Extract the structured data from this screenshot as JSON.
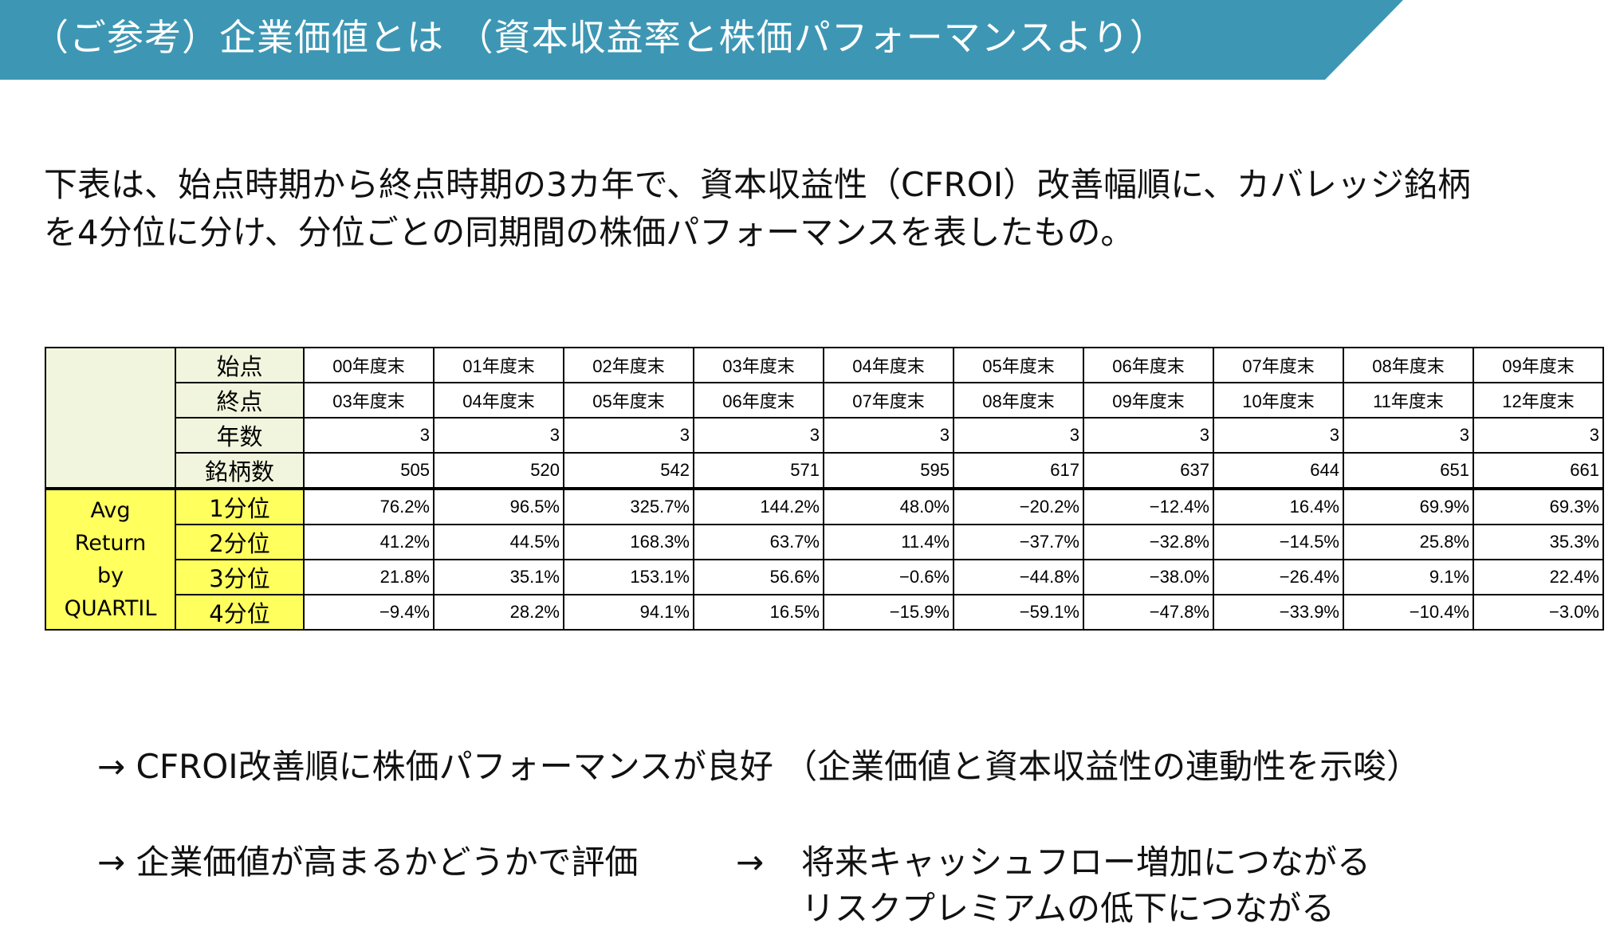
{
  "header": {
    "title": "（ご参考）企業価値とは （資本収益率と株価パフォーマンスより）",
    "banner_color": "#3d97b4"
  },
  "description": {
    "line1": "下表は、始点時期から終点時期の3カ年で、資本収益性（CFROI）改善幅順に、カバレッジ銘柄",
    "line2": "を4分位に分け、分位ごとの同期間の株価パフォーマンスを表したもの。"
  },
  "table": {
    "row_labels": {
      "start": "始点",
      "end": "終点",
      "years": "年数",
      "count": "銘柄数"
    },
    "start_periods": [
      "00年度末",
      "01年度末",
      "02年度末",
      "03年度末",
      "04年度末",
      "05年度末",
      "06年度末",
      "07年度末",
      "08年度末",
      "09年度末"
    ],
    "end_periods": [
      "03年度末",
      "04年度末",
      "05年度末",
      "06年度末",
      "07年度末",
      "08年度末",
      "09年度末",
      "10年度末",
      "11年度末",
      "12年度末"
    ],
    "years": [
      "3",
      "3",
      "3",
      "3",
      "3",
      "3",
      "3",
      "3",
      "3",
      "3"
    ],
    "counts": [
      "505",
      "520",
      "542",
      "571",
      "595",
      "617",
      "637",
      "644",
      "651",
      "661"
    ],
    "avg_label": [
      "Avg",
      "Return",
      "by",
      "QUARTIL"
    ],
    "quartiles": [
      {
        "label": "1分位",
        "values": [
          "76.2%",
          "96.5%",
          "325.7%",
          "144.2%",
          "48.0%",
          "−20.2%",
          "−12.4%",
          "16.4%",
          "69.9%",
          "69.3%"
        ]
      },
      {
        "label": "2分位",
        "values": [
          "41.2%",
          "44.5%",
          "168.3%",
          "63.7%",
          "11.4%",
          "−37.7%",
          "−32.8%",
          "−14.5%",
          "25.8%",
          "35.3%"
        ]
      },
      {
        "label": "3分位",
        "values": [
          "21.8%",
          "35.1%",
          "153.1%",
          "56.6%",
          "−0.6%",
          "−44.8%",
          "−38.0%",
          "−26.4%",
          "9.1%",
          "22.4%"
        ]
      },
      {
        "label": "4分位",
        "values": [
          "−9.4%",
          "28.2%",
          "94.1%",
          "16.5%",
          "−15.9%",
          "−59.1%",
          "−47.8%",
          "−33.9%",
          "−10.4%",
          "−3.0%"
        ]
      }
    ],
    "label_bg": "#f2f5dd",
    "highlight_bg": "#ffff5e"
  },
  "conclusions": {
    "line1": "→ CFROI改善順に株価パフォーマンスが良好 （企業価値と資本収益性の連動性を示唆）",
    "line2_left": "→ 企業価値が高まるかどうかで評価",
    "line2_arrow": "→",
    "line2_right1": "将来キャッシュフロー増加につながる",
    "line2_right2": "リスクプレミアムの低下につながる"
  }
}
